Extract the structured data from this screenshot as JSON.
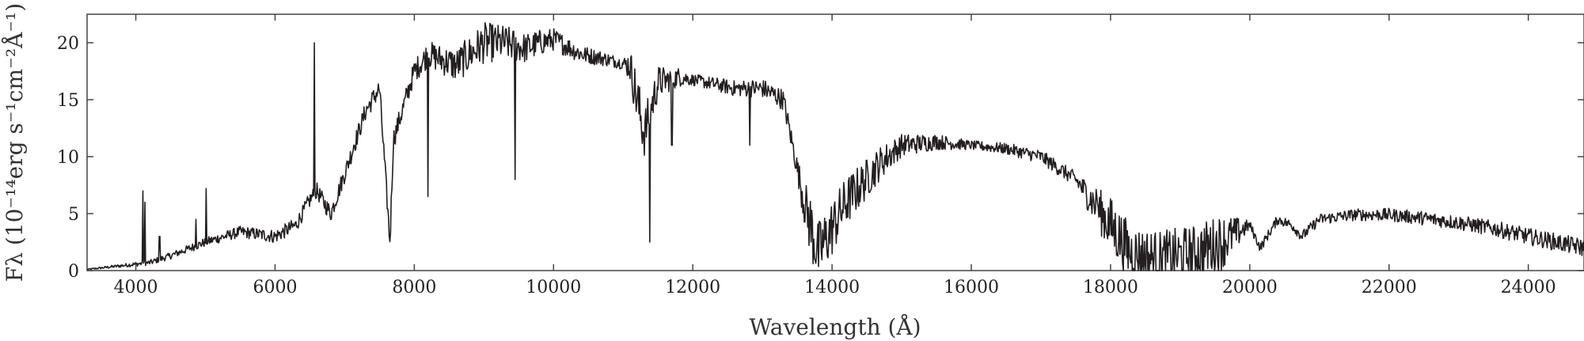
{
  "chart_data": {
    "type": "line",
    "xlabel": "Wavelength (Å)",
    "ylabel": "Fλ (10⁻¹⁴erg s⁻¹cm⁻²Å⁻¹)",
    "xlim": [
      3300,
      24800
    ],
    "ylim": [
      0,
      22.5
    ],
    "xticks": [
      4000,
      6000,
      8000,
      10000,
      12000,
      14000,
      16000,
      18000,
      20000,
      22000,
      24000
    ],
    "yticks": [
      0,
      5,
      10,
      15,
      20
    ],
    "grid": false,
    "line_color": "#231f20",
    "continuum": {
      "x": [
        3300,
        3600,
        3900,
        4200,
        4500,
        5000,
        5500,
        6000,
        6300,
        6500,
        6600,
        6800,
        7000,
        7300,
        7500,
        7650,
        7700,
        7800,
        8000,
        8200,
        8400,
        8600,
        8800,
        9000,
        9300,
        9600,
        9800,
        10000,
        10400,
        10800,
        11100,
        11300,
        11500,
        11800,
        12200,
        12600,
        13000,
        13300,
        13600,
        13800,
        14200,
        14700,
        15000,
        15500,
        16000,
        16500,
        17000,
        17500,
        18000,
        18300,
        18700,
        19200,
        19600,
        20000,
        20150,
        20400,
        20600,
        20750,
        21000,
        21500,
        22000,
        22500,
        23000,
        23500,
        24000,
        24800
      ],
      "y": [
        0.1,
        0.3,
        0.5,
        0.7,
        1.3,
        2.5,
        3.4,
        3.0,
        4.0,
        6.2,
        7.0,
        5.0,
        8.5,
        14.0,
        16.0,
        2.5,
        11.5,
        13.5,
        17.5,
        19.0,
        18.5,
        18.0,
        19.0,
        20.0,
        20.0,
        19.5,
        20.0,
        20.3,
        19.0,
        18.5,
        18.0,
        12.0,
        16.5,
        17.0,
        16.5,
        16.0,
        16.0,
        15.0,
        6.0,
        1.5,
        6.0,
        9.5,
        11.0,
        11.3,
        11.0,
        10.7,
        10.0,
        8.0,
        4.0,
        1.5,
        1.0,
        1.5,
        2.5,
        4.0,
        2.0,
        4.5,
        4.0,
        3.0,
        4.5,
        4.9,
        4.9,
        4.6,
        4.2,
        3.7,
        3.0,
        2.0
      ]
    },
    "noise": {
      "x": [
        3300,
        5000,
        6000,
        7000,
        8000,
        9000,
        10000,
        11000,
        11200,
        11600,
        12000,
        13500,
        13700,
        15000,
        16000,
        17500,
        18000,
        19600,
        20000,
        24800
      ],
      "amplitude": [
        0.05,
        0.4,
        0.6,
        0.8,
        1.0,
        1.8,
        1.0,
        0.5,
        2.5,
        1.2,
        0.5,
        1.0,
        3.0,
        1.0,
        0.4,
        0.7,
        2.5,
        2.5,
        0.4,
        0.8
      ]
    },
    "spikes": [
      {
        "x": 4102,
        "y": 7.0
      },
      {
        "x": 4130,
        "y": 6.0
      },
      {
        "x": 4340,
        "y": 3.0
      },
      {
        "x": 4861,
        "y": 4.5
      },
      {
        "x": 5008,
        "y": 7.2
      },
      {
        "x": 6563,
        "y": 20.0
      },
      {
        "x": 7135,
        "y": 11.0
      }
    ],
    "dips": [
      {
        "x": 8200,
        "y": 6.5
      },
      {
        "x": 9450,
        "y": 8.0
      },
      {
        "x": 11380,
        "y": 2.5
      },
      {
        "x": 11700,
        "y": 11.0
      },
      {
        "x": 12820,
        "y": 11.0
      },
      {
        "x": 17800,
        "y": 6.5
      }
    ]
  }
}
